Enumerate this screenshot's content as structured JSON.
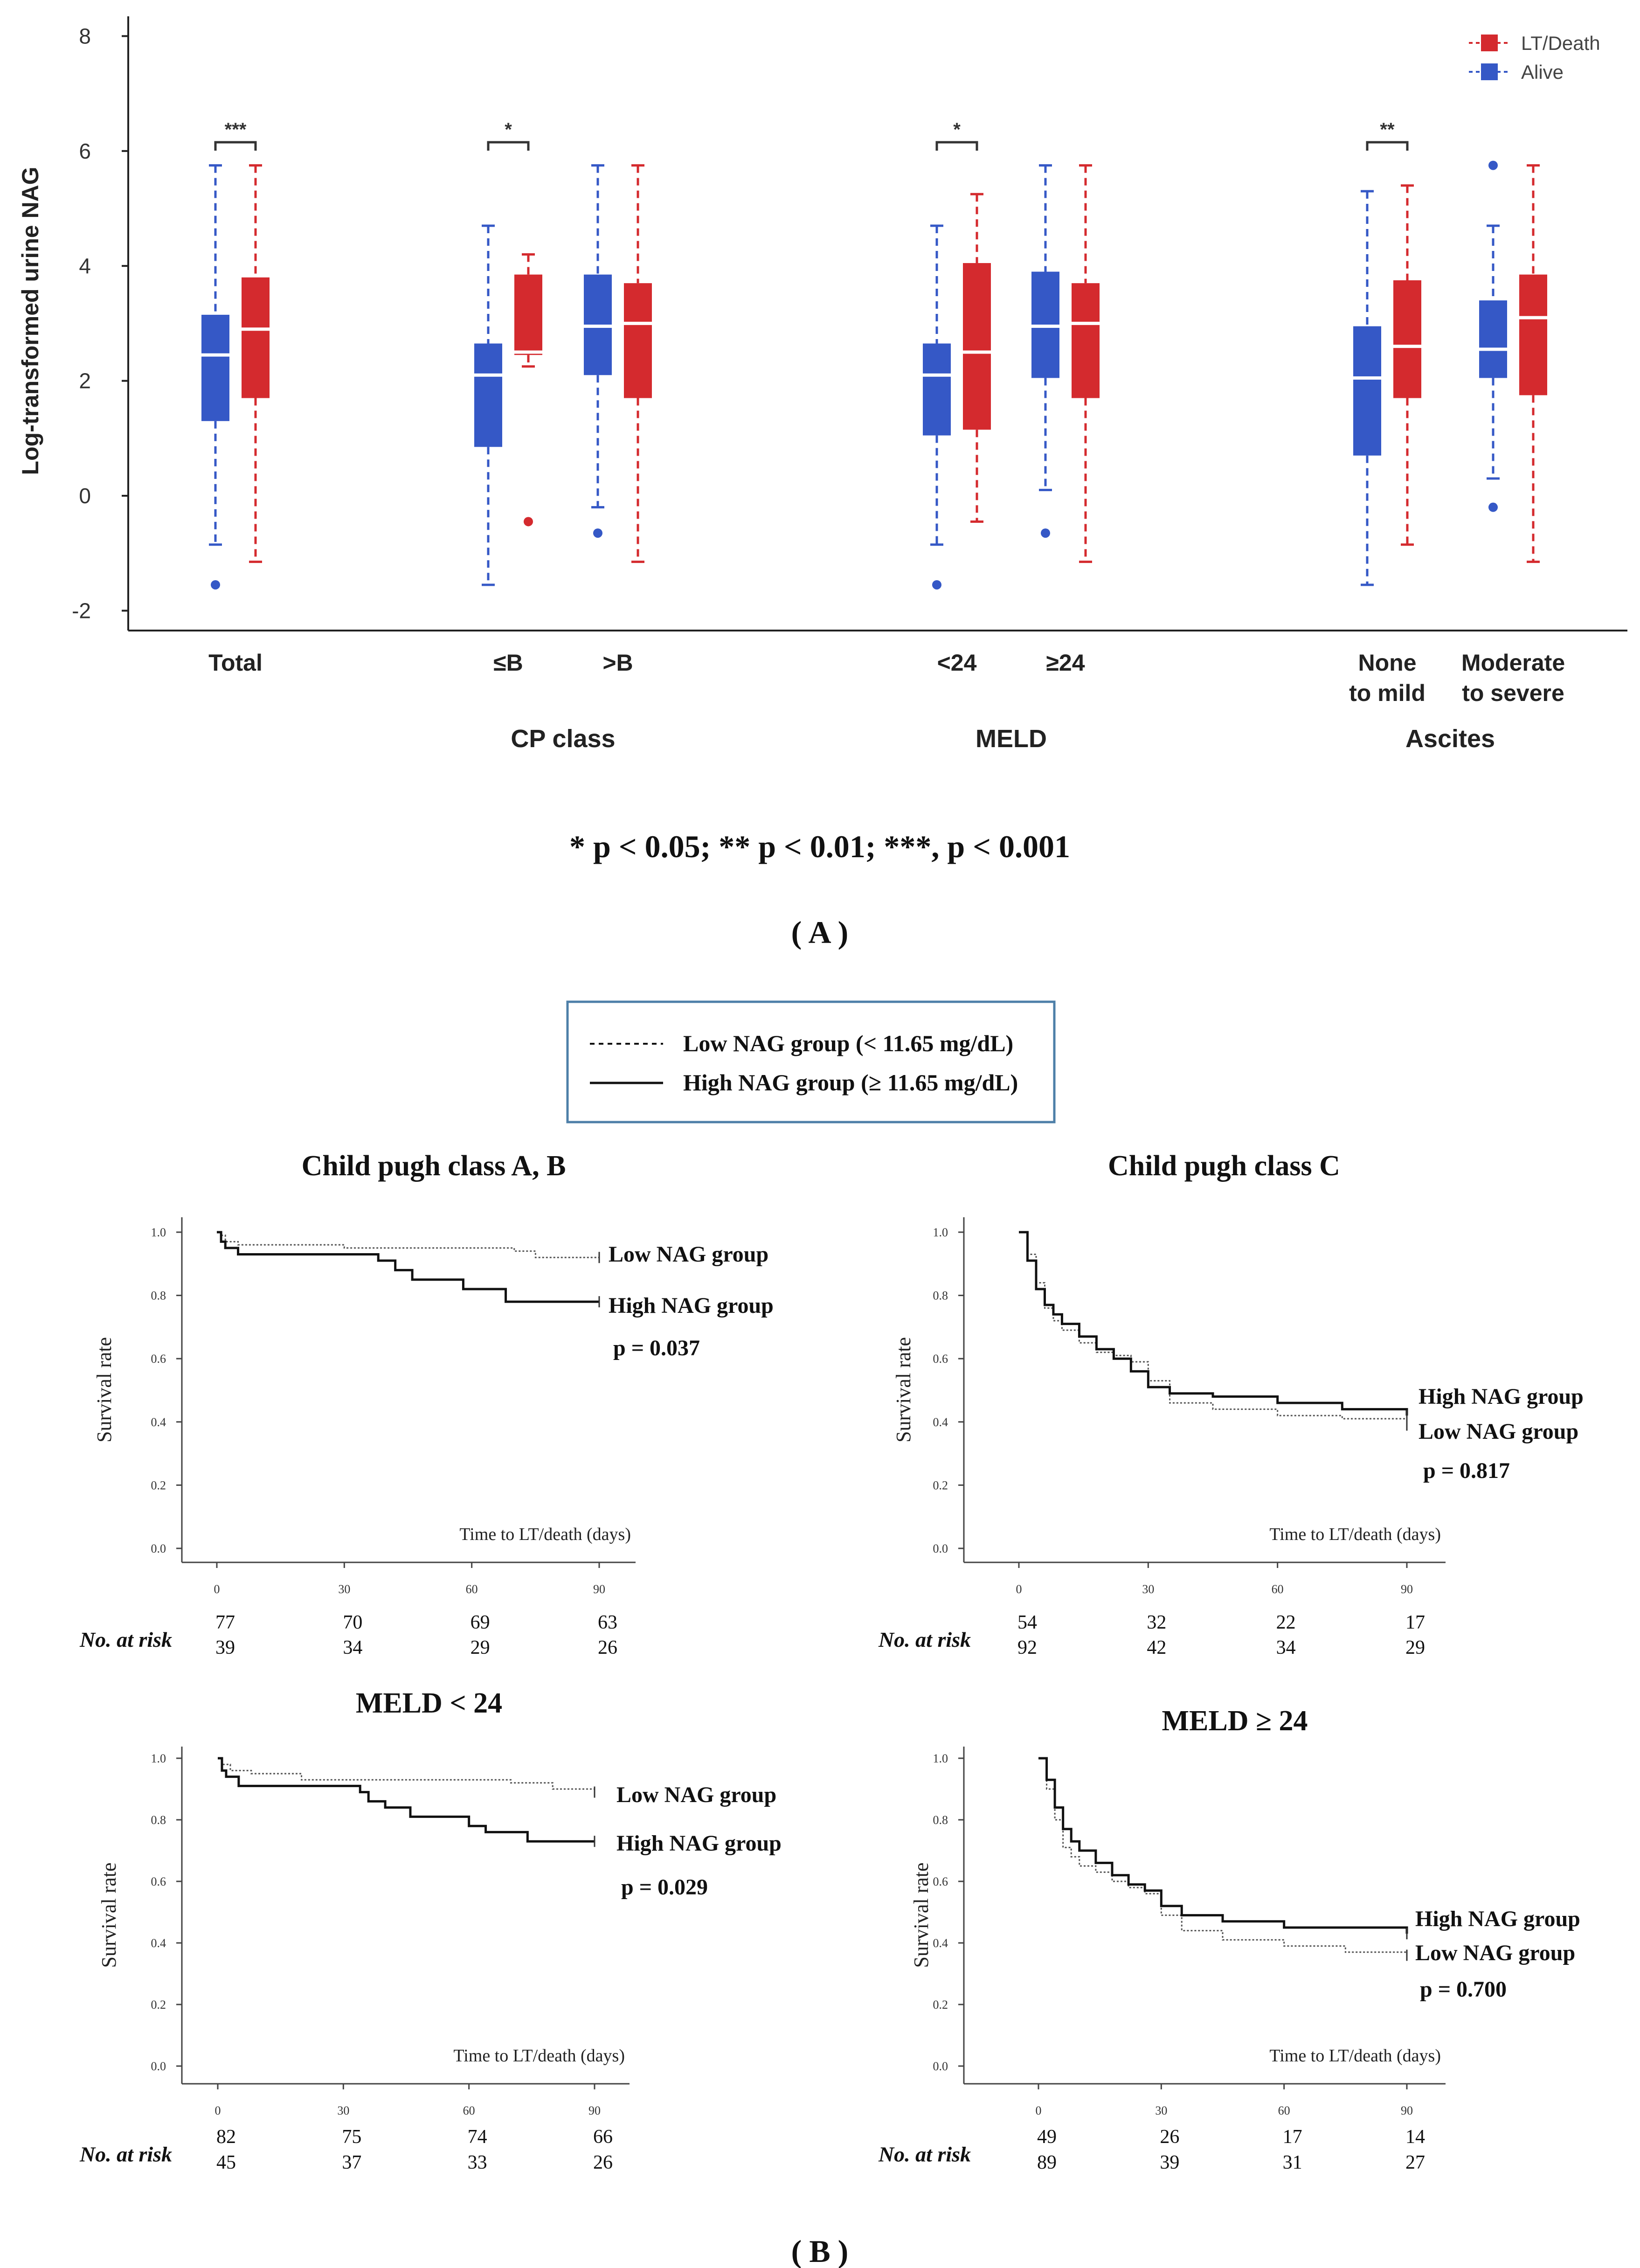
{
  "panel_a": {
    "chart_data": {
      "type": "boxplot",
      "ylabel": "Log-transformed urine NAG",
      "ylim": [
        -2.5,
        8.3
      ],
      "yticks": [
        -2,
        0,
        2,
        4,
        6,
        8
      ],
      "legend": [
        {
          "label": "LT/Death",
          "color": "#d42a2e"
        },
        {
          "label": "Alive",
          "color": "#3558c6"
        }
      ],
      "legend_position": "top-right",
      "categories": [
        {
          "label": "Total",
          "label2": "",
          "pos": 0
        },
        {
          "label": "≤B",
          "label2": "",
          "pos": 1
        },
        {
          "label": ">B",
          "label2": "",
          "pos": 2
        },
        {
          "label": "<24",
          "label2": "",
          "pos": 3
        },
        {
          "label": "≥24",
          "label2": "",
          "pos": 4
        },
        {
          "label": "None",
          "label2": "to mild",
          "pos": 5
        },
        {
          "label": "Moderate",
          "label2": "to severe",
          "pos": 6
        }
      ],
      "groups": [
        {
          "label": "CP class",
          "categories": [
            1,
            2
          ]
        },
        {
          "label": "MELD",
          "categories": [
            3,
            4
          ]
        },
        {
          "label": "Ascites",
          "categories": [
            5,
            6
          ]
        }
      ],
      "series": [
        {
          "name": "Alive",
          "color": "#3558c6",
          "boxes": [
            {
              "q1": 1.3,
              "median": 2.45,
              "q3": 3.15,
              "lo": -0.85,
              "hi": 5.75,
              "outliers": [
                -1.55
              ]
            },
            {
              "q1": 0.85,
              "median": 2.1,
              "q3": 2.65,
              "lo": -1.55,
              "hi": 4.7,
              "outliers": []
            },
            {
              "q1": 2.1,
              "median": 2.95,
              "q3": 3.85,
              "lo": -0.2,
              "hi": 5.75,
              "outliers": [
                -0.65
              ]
            },
            {
              "q1": 1.05,
              "median": 2.1,
              "q3": 2.65,
              "lo": -0.85,
              "hi": 4.7,
              "outliers": [
                -1.55
              ]
            },
            {
              "q1": 2.05,
              "median": 2.95,
              "q3": 3.9,
              "lo": 0.1,
              "hi": 5.75,
              "outliers": [
                -0.65
              ]
            },
            {
              "q1": 0.7,
              "median": 2.05,
              "q3": 2.95,
              "lo": -1.55,
              "hi": 5.3,
              "outliers": []
            },
            {
              "q1": 2.05,
              "median": 2.55,
              "q3": 3.4,
              "lo": 0.3,
              "hi": 4.7,
              "outliers": [
                5.75,
                -0.2
              ]
            }
          ]
        },
        {
          "name": "LT/Death",
          "color": "#d42a2e",
          "boxes": [
            {
              "q1": 1.7,
              "median": 2.9,
              "q3": 3.8,
              "lo": -1.15,
              "hi": 5.75,
              "outliers": []
            },
            {
              "q1": 2.45,
              "median": 2.5,
              "q3": 3.85,
              "lo": 2.25,
              "hi": 4.2,
              "outliers": [
                -0.45
              ]
            },
            {
              "q1": 1.7,
              "median": 3.0,
              "q3": 3.7,
              "lo": -1.15,
              "hi": 5.75,
              "outliers": []
            },
            {
              "q1": 1.15,
              "median": 2.5,
              "q3": 4.05,
              "lo": -0.45,
              "hi": 5.25,
              "outliers": []
            },
            {
              "q1": 1.7,
              "median": 3.0,
              "q3": 3.7,
              "lo": -1.15,
              "hi": 5.75,
              "outliers": []
            },
            {
              "q1": 1.7,
              "median": 2.6,
              "q3": 3.75,
              "lo": -0.85,
              "hi": 5.4,
              "outliers": []
            },
            {
              "q1": 1.75,
              "median": 3.1,
              "q3": 3.85,
              "lo": -1.15,
              "hi": 5.75,
              "outliers": []
            }
          ]
        }
      ],
      "significance": [
        {
          "category": 0,
          "stars": "***"
        },
        {
          "category": 1,
          "stars": "*"
        },
        {
          "category": 3,
          "stars": "*"
        },
        {
          "category": 5,
          "stars": "**"
        }
      ]
    },
    "footnote": "* p < 0.05; ** p  < 0.01; ***, p  < 0.001",
    "panel_label": "A"
  },
  "panel_b": {
    "legend": {
      "low": "Low NAG group (< 11.65 mg/dL)",
      "high": "High NAG group (≥ 11.65 mg/dL)"
    },
    "panel_label": "B",
    "chart_data": [
      {
        "type": "line",
        "title": "Child pugh class A, B",
        "ylabel": "Survival rate",
        "xlabel": "Time to LT/death (days)",
        "xlim": [
          0,
          90
        ],
        "ylim": [
          0,
          1
        ],
        "xticks": [
          "0",
          "30",
          "60",
          "90"
        ],
        "yticks": [
          "0.0",
          "0.2",
          "0.4",
          "0.6",
          "0.8",
          "1.0"
        ],
        "series": [
          {
            "name": "Low NAG group",
            "style": "dotted",
            "x": [
              0,
              1,
              2,
              5,
              30,
              70,
              75,
              90
            ],
            "y": [
              1.0,
              0.99,
              0.97,
              0.96,
              0.95,
              0.94,
              0.92,
              0.92
            ]
          },
          {
            "name": "High NAG group",
            "style": "solid",
            "x": [
              0,
              1,
              2,
              5,
              38,
              42,
              46,
              58,
              68,
              90
            ],
            "y": [
              1.0,
              0.97,
              0.95,
              0.93,
              0.91,
              0.88,
              0.85,
              0.82,
              0.78,
              0.78
            ]
          }
        ],
        "annotations": {
          "upper": "Low NAG group",
          "lower": "High NAG group",
          "p": "p = 0.037"
        },
        "risk": {
          "label": "No. at risk",
          "low": [
            "77",
            "70",
            "69",
            "63"
          ],
          "high": [
            "39",
            "34",
            "29",
            "26"
          ]
        }
      },
      {
        "type": "line",
        "title": "Child pugh class C",
        "ylabel": "Survival rate",
        "xlabel": "Time to LT/death (days)",
        "xlim": [
          0,
          90
        ],
        "ylim": [
          0,
          1
        ],
        "xticks": [
          "0",
          "30",
          "60",
          "90"
        ],
        "yticks": [
          "0.0",
          "0.2",
          "0.4",
          "0.6",
          "0.8",
          "1.0"
        ],
        "series": [
          {
            "name": "Low NAG group",
            "style": "dotted",
            "x": [
              0,
              2,
              4,
              6,
              8,
              10,
              14,
              18,
              22,
              26,
              30,
              35,
              45,
              60,
              75,
              90
            ],
            "y": [
              1.0,
              0.93,
              0.84,
              0.76,
              0.72,
              0.69,
              0.65,
              0.62,
              0.61,
              0.59,
              0.53,
              0.46,
              0.44,
              0.42,
              0.41,
              0.39
            ]
          },
          {
            "name": "High NAG group",
            "style": "solid",
            "x": [
              0,
              2,
              4,
              6,
              8,
              10,
              14,
              18,
              22,
              26,
              30,
              35,
              45,
              60,
              75,
              90
            ],
            "y": [
              1.0,
              0.91,
              0.82,
              0.77,
              0.74,
              0.71,
              0.67,
              0.63,
              0.6,
              0.56,
              0.51,
              0.49,
              0.48,
              0.46,
              0.44,
              0.42
            ]
          }
        ],
        "annotations": {
          "upper": "High NAG group",
          "lower": "Low NAG group",
          "p": "p = 0.817"
        },
        "risk": {
          "label": "No. at risk",
          "low": [
            "54",
            "32",
            "22",
            "17"
          ],
          "high": [
            "92",
            "42",
            "34",
            "29"
          ]
        }
      },
      {
        "type": "line",
        "title": "MELD < 24",
        "ylabel": "Survival rate",
        "xlabel": "Time to LT/death (days)",
        "xlim": [
          0,
          90
        ],
        "ylim": [
          0,
          1
        ],
        "xticks": [
          "0",
          "30",
          "60",
          "90"
        ],
        "yticks": [
          "0.0",
          "0.2",
          "0.4",
          "0.6",
          "0.8",
          "1.0"
        ],
        "series": [
          {
            "name": "Low NAG group",
            "style": "dotted",
            "x": [
              0,
              1,
              3,
              8,
              20,
              70,
              80,
              90
            ],
            "y": [
              1.0,
              0.98,
              0.96,
              0.95,
              0.93,
              0.92,
              0.9,
              0.89
            ]
          },
          {
            "name": "High NAG group",
            "style": "solid",
            "x": [
              0,
              1,
              2,
              5,
              34,
              36,
              40,
              46,
              60,
              64,
              74,
              90
            ],
            "y": [
              1.0,
              0.96,
              0.94,
              0.91,
              0.89,
              0.86,
              0.84,
              0.81,
              0.78,
              0.76,
              0.73,
              0.73
            ]
          }
        ],
        "annotations": {
          "upper": "Low NAG group",
          "lower": "High NAG group",
          "p": "p = 0.029"
        },
        "risk": {
          "label": "No. at risk",
          "low": [
            "82",
            "75",
            "74",
            "66"
          ],
          "high": [
            "45",
            "37",
            "33",
            "26"
          ]
        }
      },
      {
        "type": "line",
        "title": "MELD ≥ 24",
        "ylabel": "Survival rate",
        "xlabel": "Time to LT/death (days)",
        "xlim": [
          0,
          90
        ],
        "ylim": [
          0,
          1
        ],
        "xticks": [
          "0",
          "30",
          "60",
          "90"
        ],
        "yticks": [
          "0.0",
          "0.2",
          "0.4",
          "0.6",
          "0.8",
          "1.0"
        ],
        "series": [
          {
            "name": "Low NAG group",
            "style": "dotted",
            "x": [
              0,
              2,
              4,
              6,
              8,
              10,
              14,
              18,
              22,
              26,
              30,
              35,
              45,
              60,
              75,
              90
            ],
            "y": [
              1.0,
              0.9,
              0.8,
              0.71,
              0.68,
              0.65,
              0.63,
              0.6,
              0.58,
              0.56,
              0.49,
              0.44,
              0.41,
              0.39,
              0.37,
              0.36
            ]
          },
          {
            "name": "High NAG group",
            "style": "solid",
            "x": [
              0,
              2,
              4,
              6,
              8,
              10,
              14,
              18,
              22,
              26,
              30,
              35,
              45,
              60,
              75,
              90
            ],
            "y": [
              1.0,
              0.93,
              0.84,
              0.77,
              0.73,
              0.7,
              0.66,
              0.62,
              0.59,
              0.57,
              0.52,
              0.49,
              0.47,
              0.45,
              0.45,
              0.43
            ]
          }
        ],
        "annotations": {
          "upper": "High NAG group",
          "lower": "Low NAG group",
          "p": "p = 0.700"
        },
        "risk": {
          "label": "No. at risk",
          "low": [
            "49",
            "26",
            "17",
            "14"
          ],
          "high": [
            "89",
            "39",
            "31",
            "27"
          ]
        }
      }
    ]
  }
}
